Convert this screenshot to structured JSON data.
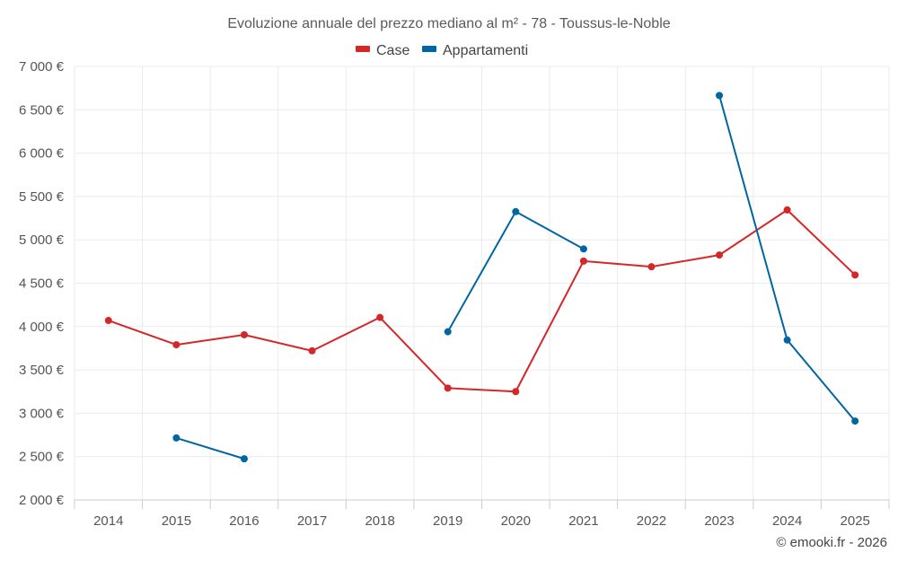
{
  "chart_data": {
    "type": "line",
    "title": "Evoluzione annuale del prezzo mediano al m² - 78 - Toussus-le-Noble",
    "xlabel": "",
    "ylabel": "",
    "categories": [
      "2014",
      "2015",
      "2016",
      "2017",
      "2018",
      "2019",
      "2020",
      "2021",
      "2022",
      "2023",
      "2024",
      "2025"
    ],
    "ylim": [
      2000,
      7000
    ],
    "yticks": [
      2000,
      2500,
      3000,
      3500,
      4000,
      4500,
      5000,
      5500,
      6000,
      6500,
      7000
    ],
    "ytick_labels": [
      "2 000 €",
      "2 500 €",
      "3 000 €",
      "3 500 €",
      "4 000 €",
      "4 500 €",
      "5 000 €",
      "5 500 €",
      "6 000 €",
      "6 500 €",
      "7 000 €"
    ],
    "grid": true,
    "legend_position": "top-center",
    "series": [
      {
        "name": "Case",
        "color": "#d62728",
        "values": [
          4070,
          3790,
          3905,
          3720,
          4105,
          3290,
          3250,
          4755,
          4690,
          4825,
          5345,
          4595
        ]
      },
      {
        "name": "Appartamenti",
        "color": "#0066a1",
        "values": [
          null,
          2715,
          2475,
          null,
          null,
          3940,
          5325,
          4895,
          null,
          6665,
          3845,
          2910
        ]
      }
    ]
  },
  "credit": "© emooki.fr - 2026"
}
